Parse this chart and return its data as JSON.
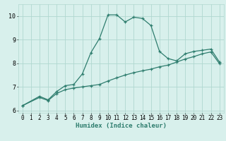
{
  "xlabel": "Humidex (Indice chaleur)",
  "ylabel": "",
  "xlim": [
    -0.5,
    23.5
  ],
  "ylim": [
    5.9,
    10.5
  ],
  "background_color": "#d8f0ec",
  "grid_color": "#b0d8d0",
  "line_color": "#2e7d6e",
  "xticks": [
    0,
    1,
    2,
    3,
    4,
    5,
    6,
    7,
    8,
    9,
    10,
    11,
    12,
    13,
    14,
    15,
    16,
    17,
    18,
    19,
    20,
    21,
    22,
    23
  ],
  "yticks": [
    6,
    7,
    8,
    9,
    10
  ],
  "line1_x": [
    0,
    2,
    3,
    4,
    5,
    6,
    7,
    8,
    9,
    10,
    11,
    12,
    13,
    14,
    15,
    16,
    17,
    18,
    19,
    20,
    21,
    22,
    23
  ],
  "line1_y": [
    6.2,
    6.6,
    6.45,
    6.8,
    7.05,
    7.1,
    7.55,
    8.45,
    9.05,
    10.05,
    10.05,
    9.75,
    9.95,
    9.9,
    9.6,
    8.5,
    8.2,
    8.1,
    8.4,
    8.5,
    8.55,
    8.6,
    8.05
  ],
  "line2_x": [
    0,
    2,
    3,
    4,
    5,
    6,
    7,
    8,
    9,
    10,
    11,
    12,
    13,
    14,
    15,
    16,
    17,
    18,
    19,
    20,
    21,
    22,
    23
  ],
  "line2_y": [
    6.2,
    6.55,
    6.42,
    6.72,
    6.88,
    6.95,
    7.0,
    7.05,
    7.1,
    7.25,
    7.38,
    7.5,
    7.6,
    7.68,
    7.75,
    7.85,
    7.92,
    8.05,
    8.18,
    8.28,
    8.4,
    8.48,
    7.98
  ],
  "marker_size": 2.5,
  "line_width": 0.9,
  "tick_fontsize": 5.5,
  "xlabel_fontsize": 6.5
}
